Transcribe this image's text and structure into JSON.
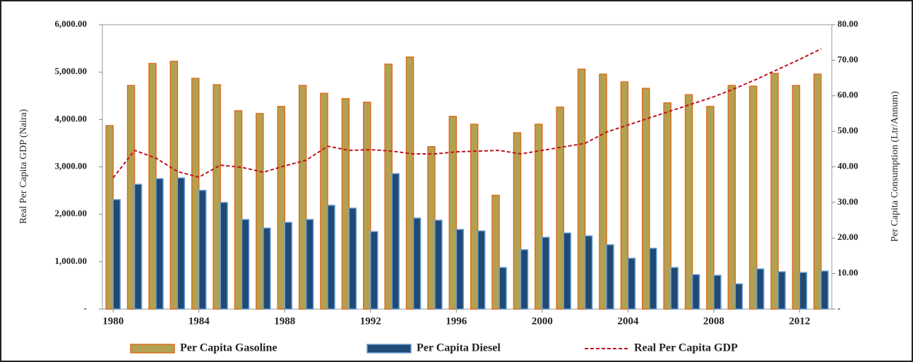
{
  "chart_data": {
    "type": "bar-line",
    "y_label": "Real Per Capita GDP (Naira)",
    "y2_label": "Per Capita Consumption (Ltr/Annum)",
    "x": [
      1980,
      1981,
      1982,
      1983,
      1984,
      1985,
      1986,
      1987,
      1988,
      1989,
      1990,
      1991,
      1992,
      1993,
      1994,
      1995,
      1996,
      1997,
      1998,
      1999,
      2000,
      2001,
      2002,
      2003,
      2004,
      2005,
      2006,
      2007,
      2008,
      2009,
      2010,
      2011,
      2012,
      2013
    ],
    "xlim": [
      1979.5,
      2013.5
    ],
    "xticks": [
      1980,
      1984,
      1988,
      1992,
      1996,
      2000,
      2004,
      2008,
      2012
    ],
    "ylim": [
      0,
      6000
    ],
    "yticks": [
      {
        "value": 0,
        "label": "-"
      },
      {
        "value": 1000,
        "label": "1,000.00"
      },
      {
        "value": 2000,
        "label": "2,000.00"
      },
      {
        "value": 3000,
        "label": "3,000.00"
      },
      {
        "value": 4000,
        "label": "4,000.00"
      },
      {
        "value": 5000,
        "label": "5,000.00"
      },
      {
        "value": 6000,
        "label": "6,000.00"
      }
    ],
    "y2lim": [
      0,
      80
    ],
    "y2ticks": [
      {
        "value": 0,
        "label": "-"
      },
      {
        "value": 10,
        "label": "10.00"
      },
      {
        "value": 20,
        "label": "20.00"
      },
      {
        "value": 30,
        "label": "30.00"
      },
      {
        "value": 40,
        "label": "40.00"
      },
      {
        "value": 50,
        "label": "50.00"
      },
      {
        "value": 60,
        "label": "60.00"
      },
      {
        "value": 70,
        "label": "70.00"
      },
      {
        "value": 80,
        "label": "80.00"
      }
    ],
    "series": [
      {
        "name": "Per Capita Gasoline",
        "kind": "bar",
        "axis": "y2",
        "color": "#b3a152",
        "edgecolor": "#d9701f",
        "values": [
          51.6,
          62.9,
          69.1,
          69.7,
          64.9,
          63.1,
          55.8,
          55.0,
          57.0,
          62.9,
          60.7,
          59.2,
          58.2,
          68.9,
          70.9,
          45.7,
          54.2,
          52.0,
          32.0,
          49.6,
          52.0,
          56.8,
          67.5,
          66.1,
          63.9,
          62.1,
          58.0,
          60.3,
          57.0,
          62.9,
          62.7,
          66.3,
          62.9,
          66.1
        ]
      },
      {
        "name": "Per Capita Diesel",
        "kind": "bar",
        "axis": "y2",
        "color": "#1f4a78",
        "edgecolor": "#6fa0d0",
        "values": [
          30.8,
          35.1,
          36.7,
          36.9,
          33.4,
          30.0,
          25.2,
          22.8,
          24.4,
          25.2,
          29.2,
          28.4,
          21.8,
          38.1,
          25.6,
          25.0,
          22.4,
          22.0,
          11.7,
          16.7,
          20.2,
          21.4,
          20.6,
          18.1,
          14.3,
          17.1,
          11.7,
          9.7,
          9.5,
          7.1,
          11.3,
          10.5,
          10.3,
          10.7
        ]
      },
      {
        "name": "Real Per Capita GDP",
        "kind": "line",
        "axis": "y",
        "color": "#c0141c",
        "values": [
          2768,
          3348,
          3185,
          2902,
          2783,
          3036,
          2991,
          2887,
          3021,
          3140,
          3437,
          3348,
          3363,
          3333,
          3274,
          3274,
          3318,
          3333,
          3348,
          3274,
          3348,
          3423,
          3497,
          3735,
          3884,
          4033,
          4182,
          4330,
          4479,
          4658,
          4851,
          5060,
          5268,
          5491
        ]
      }
    ]
  }
}
